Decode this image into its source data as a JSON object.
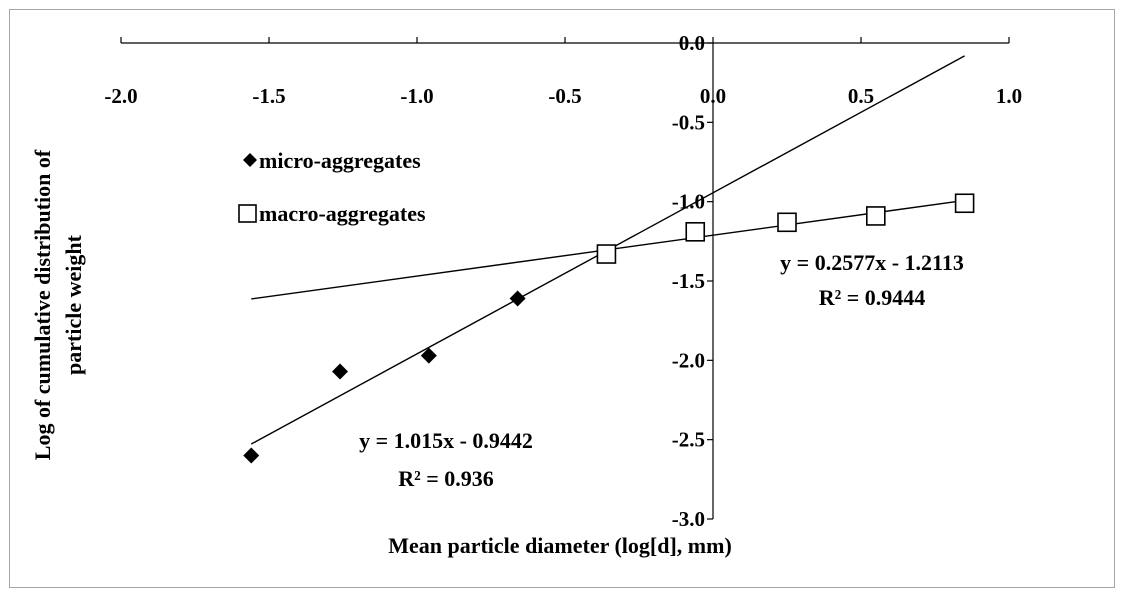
{
  "chart_data": {
    "type": "scatter",
    "xlabel": "Mean particle diameter (log[d], mm)",
    "ylabel_lines": [
      "Log of cumulative distribution of",
      "particle weight"
    ],
    "xlim": [
      -2.0,
      1.0
    ],
    "ylim": [
      -3.0,
      0.0
    ],
    "x_ticks": [
      -2.0,
      -1.5,
      -1.0,
      -0.5,
      0.0,
      0.5,
      1.0
    ],
    "x_tick_labels": [
      "-2.0",
      "-1.5",
      "-1.0",
      "-0.5",
      "0.0",
      "0.5",
      "1.0"
    ],
    "y_ticks": [
      0.0,
      -0.5,
      -1.0,
      -1.5,
      -2.0,
      -2.5,
      -3.0
    ],
    "y_tick_labels": [
      "0.0",
      "-0.5",
      "-1.0",
      "-1.5",
      "-2.0",
      "-2.5",
      "-3.0"
    ],
    "grid": false,
    "legend_position": "left",
    "series": [
      {
        "name": "micro-aggregates",
        "marker": "filled-diamond",
        "color": "#000000",
        "x": [
          -1.56,
          -1.26,
          -0.96,
          -0.66
        ],
        "y": [
          -2.6,
          -2.07,
          -1.97,
          -1.61
        ],
        "trendline": {
          "slope": 1.015,
          "intercept": -0.9442,
          "x_range": [
            -1.56,
            0.85
          ],
          "equation": "y = 1.015x - 0.9442",
          "r2": "R² = 0.936"
        }
      },
      {
        "name": "macro-aggregates",
        "marker": "open-square",
        "color": "#000000",
        "x": [
          -0.36,
          -0.06,
          0.25,
          0.55,
          0.85
        ],
        "y": [
          -1.33,
          -1.19,
          -1.13,
          -1.09,
          -1.01
        ],
        "trendline": {
          "slope": 0.2577,
          "intercept": -1.2113,
          "x_range": [
            -1.56,
            0.85
          ],
          "equation": "y = 0.2577x - 1.2113",
          "r2": "R² = 0.9444"
        }
      }
    ]
  }
}
